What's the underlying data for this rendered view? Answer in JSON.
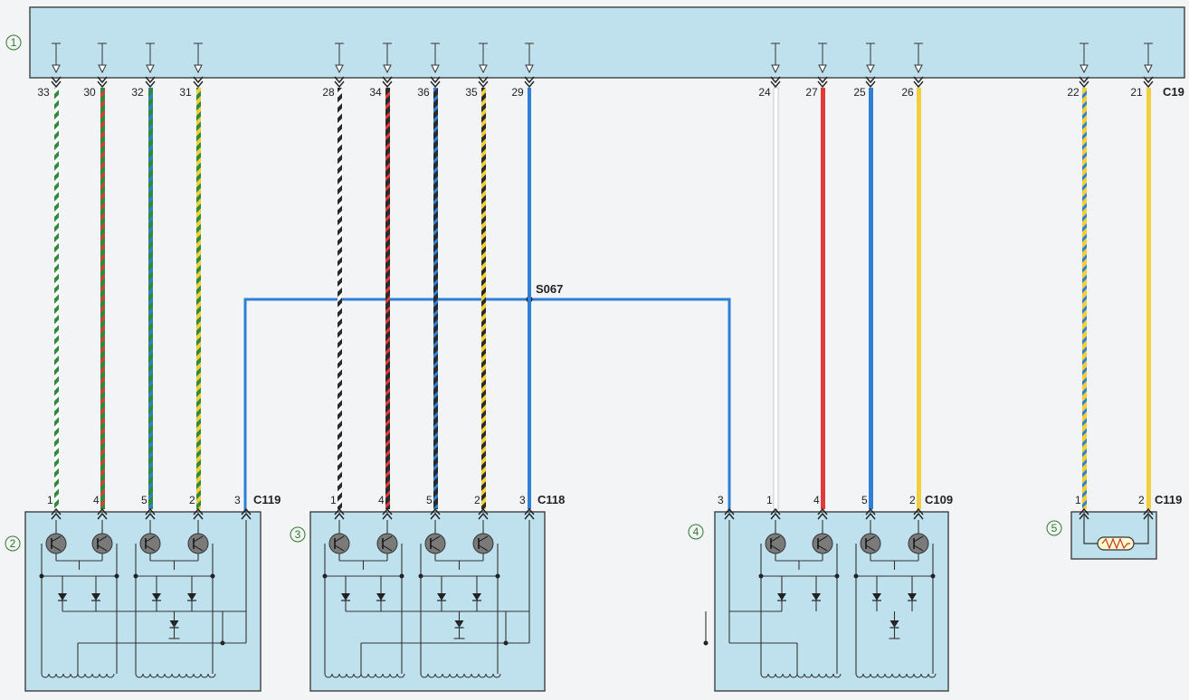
{
  "colors": {
    "background": "#f3f4f5",
    "module_fill": "#bfe1ee",
    "module_stroke": "#4a4a4a",
    "component_number_ring": "#2d7a2d",
    "wire_green": "#2f8a3c",
    "wire_white": "#ffffff",
    "wire_red": "#e03a3a",
    "wire_blue": "#2e7fd6",
    "wire_yellow": "#f1cf3a",
    "wire_black": "#2a2a2a"
  },
  "components": [
    {
      "id": "1",
      "label": "①"
    },
    {
      "id": "2",
      "label": "②"
    },
    {
      "id": "3",
      "label": "③"
    },
    {
      "id": "4",
      "label": "④"
    },
    {
      "id": "5",
      "label": "⑤"
    }
  ],
  "connectors": [
    {
      "id": "C19",
      "label": "C19"
    },
    {
      "id": "C119a",
      "label": "C119"
    },
    {
      "id": "C118",
      "label": "C118"
    },
    {
      "id": "C109",
      "label": "C109"
    },
    {
      "id": "C119b",
      "label": "C119"
    }
  ],
  "splice": {
    "label": "S067"
  },
  "wires": [
    {
      "top_pin": "33",
      "bottom_pin": "1",
      "colors": [
        "green",
        "white"
      ]
    },
    {
      "top_pin": "30",
      "bottom_pin": "4",
      "colors": [
        "green",
        "red"
      ]
    },
    {
      "top_pin": "32",
      "bottom_pin": "5",
      "colors": [
        "green",
        "blue"
      ]
    },
    {
      "top_pin": "31",
      "bottom_pin": "2",
      "colors": [
        "green",
        "yellow"
      ]
    },
    {
      "top_pin": "28",
      "bottom_pin": "1",
      "colors": [
        "black",
        "white"
      ]
    },
    {
      "top_pin": "34",
      "bottom_pin": "4",
      "colors": [
        "black",
        "red"
      ]
    },
    {
      "top_pin": "36",
      "bottom_pin": "5",
      "colors": [
        "black",
        "blue"
      ]
    },
    {
      "top_pin": "35",
      "bottom_pin": "2",
      "colors": [
        "black",
        "yellow"
      ]
    },
    {
      "top_pin": "29",
      "bottom_pin": "3",
      "colors": [
        "blue"
      ]
    },
    {
      "top_pin": "24",
      "bottom_pin": "1",
      "colors": [
        "white"
      ]
    },
    {
      "top_pin": "27",
      "bottom_pin": "4",
      "colors": [
        "red"
      ]
    },
    {
      "top_pin": "25",
      "bottom_pin": "5",
      "colors": [
        "blue"
      ]
    },
    {
      "top_pin": "26",
      "bottom_pin": "2",
      "colors": [
        "yellow"
      ]
    },
    {
      "top_pin": "22",
      "bottom_pin": "1",
      "colors": [
        "yellow",
        "blue"
      ]
    },
    {
      "top_pin": "21",
      "bottom_pin": "2",
      "colors": [
        "yellow"
      ]
    }
  ],
  "splice_branch_pins": [
    "3",
    "3"
  ]
}
